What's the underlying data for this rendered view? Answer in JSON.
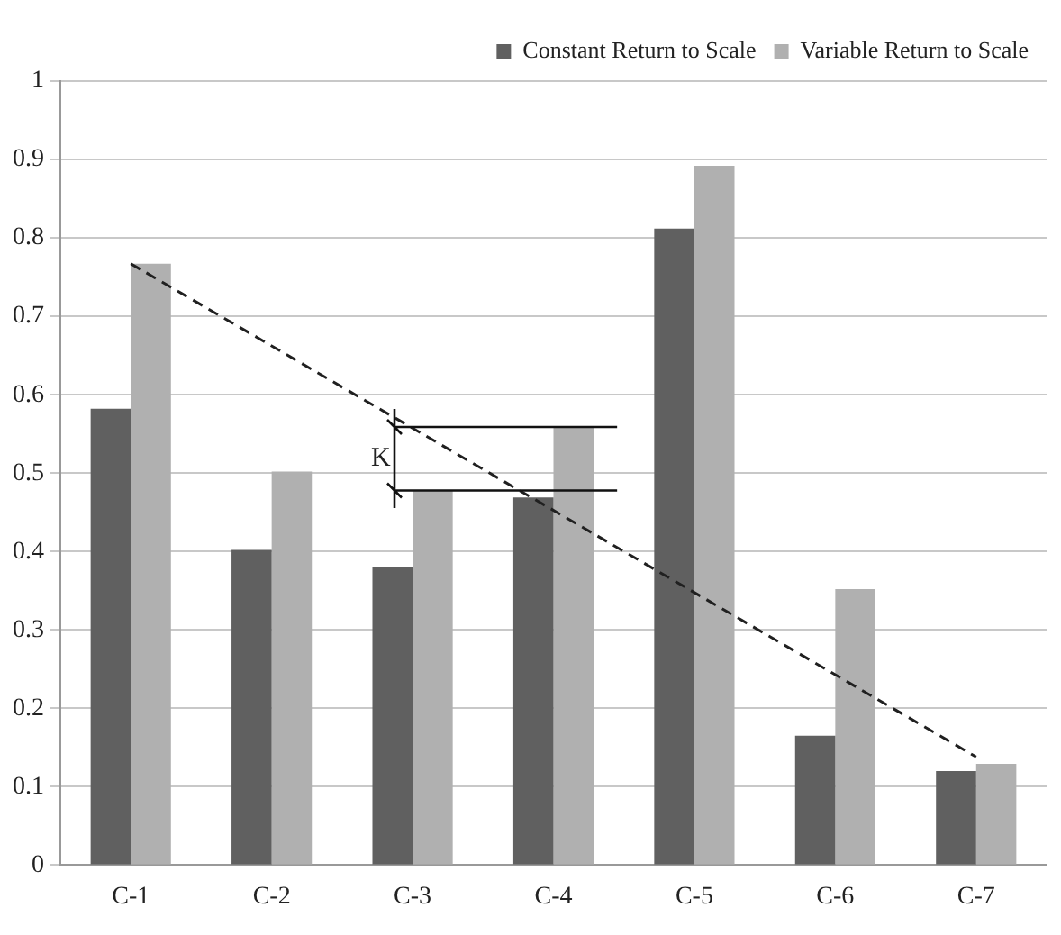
{
  "chart_data": {
    "type": "bar",
    "categories": [
      "C-1",
      "C-2",
      "C-3",
      "C-4",
      "C-5",
      "C-6",
      "C-7"
    ],
    "series": [
      {
        "name": "Constant Return to Scale",
        "color": "#606060",
        "values": [
          0.582,
          0.402,
          0.38,
          0.469,
          0.812,
          0.165,
          0.12
        ]
      },
      {
        "name": "Variable Return to Scale",
        "color": "#b0b0b0",
        "values": [
          0.767,
          0.502,
          0.478,
          0.559,
          0.892,
          0.352,
          0.129
        ]
      },
      {
        "type": "line",
        "color": "#202020",
        "line_style": "dashed",
        "x": [
          "C-1",
          "C-7"
        ],
        "values": [
          0.767,
          0.138
        ]
      }
    ],
    "ylim": [
      0,
      1
    ],
    "yticks": [
      0,
      0.1,
      0.2,
      0.3,
      0.4,
      0.5,
      0.6,
      0.7,
      0.8,
      0.9,
      1
    ],
    "grid": "y",
    "legend": "top right",
    "annotations": [
      "K"
    ]
  }
}
